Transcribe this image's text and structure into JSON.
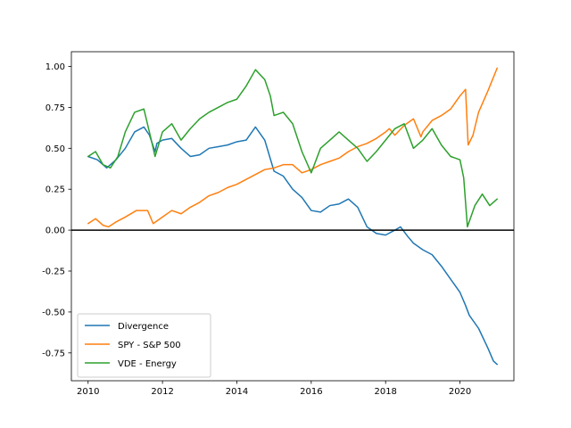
{
  "chart_data": {
    "type": "line",
    "xlim": [
      2009.55,
      2021.45
    ],
    "ylim": [
      -0.92,
      1.09
    ],
    "x_ticks": [
      2010,
      2012,
      2014,
      2016,
      2018,
      2020
    ],
    "y_ticks": [
      -0.75,
      -0.5,
      -0.25,
      0.0,
      0.25,
      0.5,
      0.75,
      1.0
    ],
    "grid": false,
    "legend_position": "lower-left",
    "horizontal_reference_line": {
      "y": 0.0,
      "color": "#000000"
    },
    "series": [
      {
        "name": "Divergence",
        "color": "#1f77b4",
        "x": [
          2010.0,
          2010.25,
          2010.5,
          2010.75,
          2011.0,
          2011.25,
          2011.5,
          2011.65,
          2011.8,
          2011.85,
          2012.0,
          2012.25,
          2012.5,
          2012.75,
          2013.0,
          2013.25,
          2013.5,
          2013.75,
          2014.0,
          2014.25,
          2014.5,
          2014.75,
          2015.0,
          2015.25,
          2015.5,
          2015.75,
          2016.0,
          2016.25,
          2016.5,
          2016.75,
          2017.0,
          2017.25,
          2017.5,
          2017.75,
          2018.0,
          2018.25,
          2018.4,
          2018.6,
          2018.75,
          2019.0,
          2019.25,
          2019.5,
          2019.75,
          2020.0,
          2020.15,
          2020.25,
          2020.5,
          2020.75,
          2020.9,
          2021.0
        ],
        "y": [
          0.45,
          0.43,
          0.38,
          0.43,
          0.5,
          0.6,
          0.63,
          0.58,
          0.48,
          0.53,
          0.55,
          0.56,
          0.5,
          0.45,
          0.46,
          0.5,
          0.51,
          0.52,
          0.54,
          0.55,
          0.63,
          0.55,
          0.36,
          0.33,
          0.25,
          0.2,
          0.12,
          0.11,
          0.15,
          0.16,
          0.19,
          0.14,
          0.02,
          -0.02,
          -0.03,
          0.0,
          0.02,
          -0.04,
          -0.08,
          -0.12,
          -0.15,
          -0.22,
          -0.3,
          -0.38,
          -0.46,
          -0.52,
          -0.6,
          -0.72,
          -0.8,
          -0.82
        ]
      },
      {
        "name": "SPY - S&P 500",
        "color": "#ff7f0e",
        "x": [
          2010.0,
          2010.2,
          2010.4,
          2010.55,
          2010.75,
          2011.0,
          2011.3,
          2011.6,
          2011.75,
          2012.0,
          2012.25,
          2012.5,
          2012.75,
          2013.0,
          2013.25,
          2013.5,
          2013.75,
          2014.0,
          2014.25,
          2014.5,
          2014.75,
          2015.0,
          2015.25,
          2015.5,
          2015.75,
          2016.0,
          2016.25,
          2016.5,
          2016.75,
          2017.0,
          2017.25,
          2017.5,
          2017.75,
          2018.0,
          2018.1,
          2018.25,
          2018.5,
          2018.75,
          2018.95,
          2019.0,
          2019.25,
          2019.5,
          2019.75,
          2020.0,
          2020.15,
          2020.22,
          2020.35,
          2020.5,
          2020.75,
          2021.0
        ],
        "y": [
          0.04,
          0.07,
          0.03,
          0.02,
          0.05,
          0.08,
          0.12,
          0.12,
          0.04,
          0.08,
          0.12,
          0.1,
          0.14,
          0.17,
          0.21,
          0.23,
          0.26,
          0.28,
          0.31,
          0.34,
          0.37,
          0.38,
          0.4,
          0.4,
          0.35,
          0.37,
          0.4,
          0.42,
          0.44,
          0.48,
          0.51,
          0.53,
          0.56,
          0.6,
          0.62,
          0.58,
          0.64,
          0.68,
          0.57,
          0.6,
          0.67,
          0.7,
          0.74,
          0.82,
          0.86,
          0.52,
          0.58,
          0.72,
          0.85,
          0.99
        ]
      },
      {
        "name": "VDE - Energy",
        "color": "#2ca02c",
        "x": [
          2010.0,
          2010.2,
          2010.4,
          2010.6,
          2010.8,
          2011.0,
          2011.25,
          2011.5,
          2011.7,
          2011.8,
          2012.0,
          2012.25,
          2012.5,
          2012.75,
          2013.0,
          2013.25,
          2013.5,
          2013.75,
          2014.0,
          2014.25,
          2014.5,
          2014.75,
          2014.9,
          2015.0,
          2015.25,
          2015.5,
          2015.75,
          2016.0,
          2016.25,
          2016.5,
          2016.75,
          2017.0,
          2017.25,
          2017.5,
          2017.75,
          2018.0,
          2018.25,
          2018.5,
          2018.75,
          2019.0,
          2019.25,
          2019.5,
          2019.75,
          2020.0,
          2020.1,
          2020.2,
          2020.4,
          2020.6,
          2020.8,
          2021.0
        ],
        "y": [
          0.45,
          0.48,
          0.4,
          0.38,
          0.45,
          0.6,
          0.72,
          0.74,
          0.55,
          0.45,
          0.6,
          0.65,
          0.55,
          0.62,
          0.68,
          0.72,
          0.75,
          0.78,
          0.8,
          0.88,
          0.98,
          0.92,
          0.82,
          0.7,
          0.72,
          0.65,
          0.48,
          0.35,
          0.5,
          0.55,
          0.6,
          0.55,
          0.5,
          0.42,
          0.48,
          0.55,
          0.62,
          0.65,
          0.5,
          0.55,
          0.62,
          0.52,
          0.45,
          0.43,
          0.32,
          0.02,
          0.15,
          0.22,
          0.15,
          0.19
        ]
      }
    ]
  }
}
